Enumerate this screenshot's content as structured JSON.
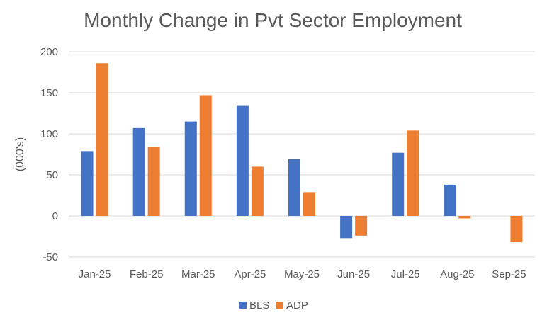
{
  "chart_data": {
    "type": "bar",
    "title": "Monthly Change in Pvt Sector Employment",
    "xlabel": "",
    "ylabel": "(000's)",
    "ylim": [
      -50,
      200
    ],
    "yticks": [
      -50,
      0,
      50,
      100,
      150,
      200
    ],
    "grid": true,
    "legend": "bottom",
    "categories": [
      "Jan-25",
      "Feb-25",
      "Mar-25",
      "Apr-25",
      "May-25",
      "Jun-25",
      "Jul-25",
      "Aug-25",
      "Sep-25"
    ],
    "series": [
      {
        "name": "BLS",
        "color": "#4472C4",
        "values": [
          79,
          107,
          115,
          134,
          69,
          -27,
          77,
          38,
          null
        ]
      },
      {
        "name": "ADP",
        "color": "#ED7D31",
        "values": [
          186,
          84,
          147,
          60,
          29,
          -24,
          104,
          -3,
          -32
        ]
      }
    ]
  }
}
